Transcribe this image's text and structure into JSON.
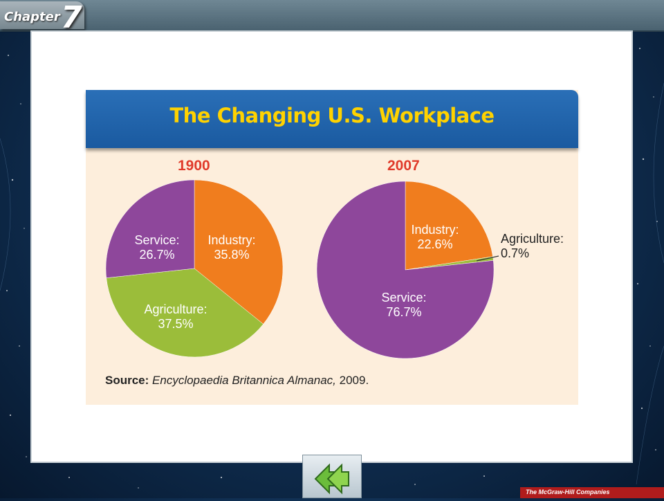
{
  "header": {
    "chapter_word": "Chapter",
    "chapter_number": "7"
  },
  "figure": {
    "title": "The Changing U.S. Workplace",
    "source_label": "Source:",
    "source_title": "Encyclopaedia Britannica Almanac,",
    "source_year": "2009."
  },
  "chart_data": [
    {
      "type": "pie",
      "title": "1900",
      "slices": [
        {
          "label": "Industry:",
          "value": 35.8,
          "value_text": "35.8%",
          "color": "#f07d1e"
        },
        {
          "label": "Agriculture:",
          "value": 37.5,
          "value_text": "37.5%",
          "color": "#9bbd3a"
        },
        {
          "label": "Service:",
          "value": 26.7,
          "value_text": "26.7%",
          "color": "#8e479b"
        }
      ]
    },
    {
      "type": "pie",
      "title": "2007",
      "slices": [
        {
          "label": "Industry:",
          "value": 22.6,
          "value_text": "22.6%",
          "color": "#f07d1e"
        },
        {
          "label": "Agriculture:",
          "value": 0.7,
          "value_text": "0.7%",
          "color": "#9bbd3a"
        },
        {
          "label": "Service:",
          "value": 76.7,
          "value_text": "76.7%",
          "color": "#8e479b"
        }
      ]
    }
  ],
  "footer": {
    "publisher": "The McGraw-Hill Companies",
    "back_icon": "double-left-arrow-icon"
  }
}
